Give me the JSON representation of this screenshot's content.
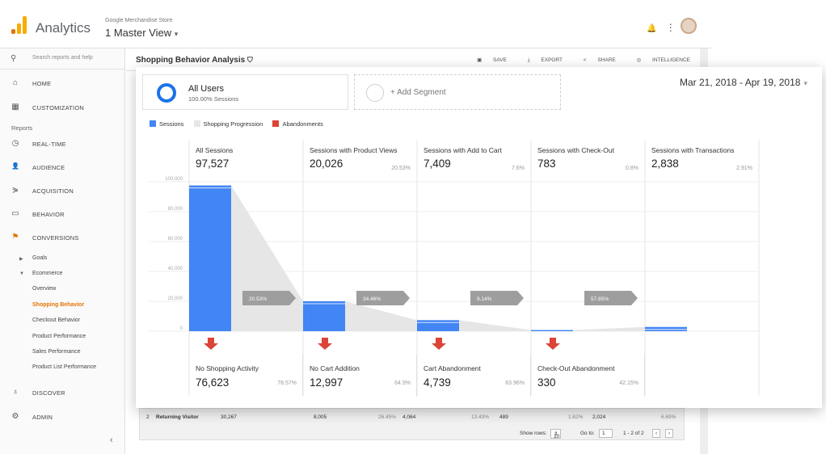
{
  "app": {
    "name": "Analytics",
    "account_name": "Google Merchandise Store",
    "view_name": "1 Master View",
    "view_caret": "▾",
    "bell": "🔔",
    "menu_dots": "⋮"
  },
  "sidebar": {
    "search_placeholder": "Search reports and help",
    "reports_label": "Reports",
    "nav": [
      {
        "label": "HOME",
        "icon": "home-icon",
        "glyph": "⌂"
      },
      {
        "label": "CUSTOMIZATION",
        "icon": "dashboard-icon",
        "glyph": "▦"
      },
      {
        "label": "REAL-TIME",
        "icon": "clock-icon",
        "glyph": "◷"
      },
      {
        "label": "AUDIENCE",
        "icon": "person-icon",
        "glyph": "👤"
      },
      {
        "label": "ACQUISITION",
        "icon": "acquisition-icon",
        "glyph": "⋟"
      },
      {
        "label": "BEHAVIOR",
        "icon": "behavior-icon",
        "glyph": "▭"
      },
      {
        "label": "CONVERSIONS",
        "icon": "flag-icon",
        "glyph": "⚑"
      }
    ],
    "sub": {
      "goals": "Goals",
      "ecommerce": "Ecommerce",
      "items": [
        "Overview",
        "Shopping Behavior",
        "Checkout Behavior",
        "Product Performance",
        "Sales Performance",
        "Product List Performance"
      ]
    },
    "discover": "DISCOVER",
    "admin": "ADMIN",
    "collapse": "‹"
  },
  "report": {
    "title": "Shopping Behavior Analysis",
    "save": "SAVE",
    "export": "EXPORT",
    "share": "SHARE",
    "intelligence": "INTELLIGENCE"
  },
  "segments": {
    "active_name": "All Users",
    "active_sub": "100.00% Sessions",
    "add_label": "+ Add Segment"
  },
  "date_range": "Mar 21, 2018 - Apr 19, 2018",
  "legend": {
    "sessions": "Sessions",
    "progression": "Shopping Progression",
    "abandonments": "Abandonments"
  },
  "colors": {
    "sessions": "#4285f4",
    "progression": "#e6e6e6",
    "abandonments": "#db4437",
    "arrow": "#9e9e9e",
    "accent": "#e37400"
  },
  "chart_data": {
    "type": "bar",
    "ylim": [
      0,
      100000
    ],
    "yticks": [
      0,
      20000,
      40000,
      60000,
      80000,
      100000
    ],
    "ytick_labels": [
      "0",
      "20,000",
      "40,000",
      "60,000",
      "80,000",
      "100,000"
    ],
    "stages": [
      {
        "label": "All Sessions",
        "value": 97527,
        "value_label": "97,527",
        "pct": ""
      },
      {
        "label": "Sessions with Product Views",
        "value": 20026,
        "value_label": "20,026",
        "pct": "20.53%"
      },
      {
        "label": "Sessions with Add to Cart",
        "value": 7409,
        "value_label": "7,409",
        "pct": "7.6%"
      },
      {
        "label": "Sessions with Check-Out",
        "value": 783,
        "value_label": "783",
        "pct": "0.8%"
      },
      {
        "label": "Sessions with Transactions",
        "value": 2838,
        "value_label": "2,838",
        "pct": "2.91%"
      }
    ],
    "progression_labels": [
      "20.53%",
      "34.46%",
      "9.14%",
      "57.85%"
    ],
    "abandonments": [
      {
        "label": "No Shopping Activity",
        "value": 76623,
        "value_label": "76,623",
        "pct": "78.57%"
      },
      {
        "label": "No Cart Addition",
        "value": 12997,
        "value_label": "12,997",
        "pct": "64.9%"
      },
      {
        "label": "Cart Abandonment",
        "value": 4739,
        "value_label": "4,739",
        "pct": "63.96%"
      },
      {
        "label": "Check-Out Abandonment",
        "value": 330,
        "value_label": "330",
        "pct": "42.15%"
      }
    ]
  },
  "table": {
    "row": [
      "2",
      "Returning Visitor",
      "30,267",
      "8,005",
      "26.45%",
      "4,064",
      "13.43%",
      "489",
      "1.62%",
      "2,024",
      "6.69%"
    ],
    "show_rows_label": "Show rows:",
    "show_rows_value": "10",
    "goto_label": "Go to:",
    "goto_value": "1",
    "range": "1 - 2 of 2"
  }
}
